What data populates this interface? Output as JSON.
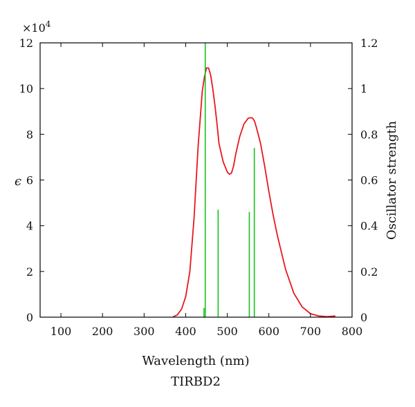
{
  "chart_data": {
    "type": "line",
    "title": "",
    "caption": "TIRBD2",
    "xlabel": "Wavelength (nm)",
    "ylabel_left": "ϵ",
    "ylabel_right": "Oscillator strength",
    "left_axis_multiplier": "×10",
    "left_axis_multiplier_exp": "4",
    "xlim": [
      50,
      800
    ],
    "ylim_left": [
      0,
      12
    ],
    "ylim_right": [
      0,
      1.2
    ],
    "xticks": [
      100,
      200,
      300,
      400,
      500,
      600,
      700,
      800
    ],
    "yticks_left": [
      0,
      2,
      4,
      6,
      8,
      10,
      12
    ],
    "yticks_right": [
      "0",
      "0.2",
      "0.4",
      "0.6",
      "0.8",
      "1",
      "1.2"
    ],
    "yticks_right_values": [
      0,
      0.2,
      0.4,
      0.6,
      0.8,
      1.0,
      1.2
    ],
    "grid": false,
    "colors": {
      "absorption": "#e8161c",
      "oscillator": "#12c41a",
      "axes": "#000000"
    },
    "absorption_series": {
      "axis": "left",
      "x": [
        370,
        380,
        390,
        400,
        410,
        420,
        430,
        440,
        445,
        450,
        455,
        460,
        465,
        470,
        475,
        480,
        490,
        500,
        505,
        510,
        515,
        520,
        530,
        540,
        550,
        555,
        560,
        565,
        570,
        580,
        590,
        600,
        610,
        620,
        640,
        660,
        680,
        700,
        720,
        740,
        760
      ],
      "y": [
        0.02,
        0.1,
        0.35,
        0.9,
        2.0,
        4.3,
        7.5,
        9.9,
        10.5,
        10.9,
        10.9,
        10.6,
        10.0,
        9.3,
        8.5,
        7.6,
        6.8,
        6.35,
        6.25,
        6.3,
        6.6,
        7.1,
        7.9,
        8.45,
        8.7,
        8.72,
        8.72,
        8.6,
        8.3,
        7.6,
        6.6,
        5.5,
        4.5,
        3.6,
        2.1,
        1.05,
        0.45,
        0.15,
        0.05,
        0.02,
        0.05
      ]
    },
    "oscillator_lines": {
      "axis": "right",
      "x": [
        444,
        447,
        478,
        553,
        565
      ],
      "f": [
        0.04,
        1.2,
        0.47,
        0.46,
        0.74
      ]
    }
  }
}
